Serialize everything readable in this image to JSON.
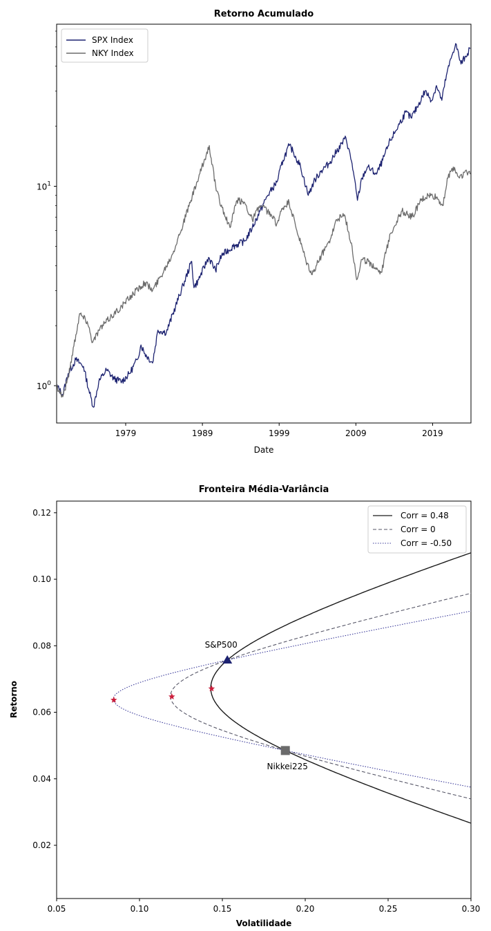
{
  "chart_data": [
    {
      "type": "line",
      "title": "Retorno Acumulado",
      "xlabel": "Date",
      "ylabel": "",
      "yscale": "log",
      "xlim": [
        1970,
        2024
      ],
      "ylim": [
        0.65,
        65
      ],
      "xticks": [
        1979,
        1989,
        1999,
        2009,
        2019
      ],
      "xtick_labels": [
        "1979",
        "1989",
        "1999",
        "2009",
        "2019"
      ],
      "yticks": [
        {
          "value": 1,
          "base": "10",
          "exp": "0"
        },
        {
          "value": 10,
          "base": "10",
          "exp": "1"
        }
      ],
      "legend_position": "top-left",
      "series": [
        {
          "name": "SPX Index",
          "color": "#1c2270",
          "points": [
            [
              1970.0,
              1.0
            ],
            [
              1970.8,
              0.9
            ],
            [
              1971.5,
              1.15
            ],
            [
              1972.5,
              1.35
            ],
            [
              1973.5,
              1.25
            ],
            [
              1974.2,
              0.95
            ],
            [
              1974.8,
              0.78
            ],
            [
              1975.5,
              1.05
            ],
            [
              1976.5,
              1.2
            ],
            [
              1977.5,
              1.08
            ],
            [
              1978.5,
              1.05
            ],
            [
              1979.5,
              1.15
            ],
            [
              1980.5,
              1.35
            ],
            [
              1981.0,
              1.6
            ],
            [
              1981.5,
              1.45
            ],
            [
              1982.5,
              1.3
            ],
            [
              1983.2,
              1.9
            ],
            [
              1984.3,
              1.85
            ],
            [
              1985.5,
              2.5
            ],
            [
              1986.5,
              3.2
            ],
            [
              1987.6,
              4.2
            ],
            [
              1987.9,
              3.1
            ],
            [
              1988.5,
              3.4
            ],
            [
              1989.8,
              4.4
            ],
            [
              1990.7,
              3.8
            ],
            [
              1991.5,
              4.5
            ],
            [
              1993.0,
              5.0
            ],
            [
              1994.5,
              5.3
            ],
            [
              1995.5,
              6.2
            ],
            [
              1996.5,
              7.5
            ],
            [
              1997.5,
              9.0
            ],
            [
              1998.7,
              10.5
            ],
            [
              1999.5,
              13.5
            ],
            [
              2000.3,
              16.0
            ],
            [
              2000.8,
              15.0
            ],
            [
              2001.8,
              12.5
            ],
            [
              2002.5,
              10.0
            ],
            [
              2002.8,
              9.0
            ],
            [
              2003.5,
              10.5
            ],
            [
              2004.5,
              12.0
            ],
            [
              2005.5,
              13.0
            ],
            [
              2006.5,
              15.0
            ],
            [
              2007.7,
              17.5
            ],
            [
              2008.5,
              13.0
            ],
            [
              2009.2,
              8.5
            ],
            [
              2009.8,
              11.0
            ],
            [
              2010.5,
              12.5
            ],
            [
              2011.7,
              11.5
            ],
            [
              2012.5,
              13.5
            ],
            [
              2013.5,
              17.0
            ],
            [
              2014.5,
              20.0
            ],
            [
              2015.5,
              23.5
            ],
            [
              2016.2,
              22.0
            ],
            [
              2017.0,
              25.0
            ],
            [
              2018.0,
              30.0
            ],
            [
              2018.9,
              27.0
            ],
            [
              2019.5,
              32.0
            ],
            [
              2020.2,
              27.0
            ],
            [
              2020.8,
              36.0
            ],
            [
              2021.5,
              45.0
            ],
            [
              2022.0,
              52.0
            ],
            [
              2022.7,
              41.0
            ],
            [
              2023.3,
              45.0
            ],
            [
              2023.9,
              49.0
            ]
          ]
        },
        {
          "name": "NKY Index",
          "color": "#6b6b6b",
          "points": [
            [
              1970.0,
              1.0
            ],
            [
              1970.8,
              0.88
            ],
            [
              1971.5,
              1.1
            ],
            [
              1972.5,
              1.8
            ],
            [
              1973.0,
              2.3
            ],
            [
              1974.0,
              2.1
            ],
            [
              1974.7,
              1.65
            ],
            [
              1975.5,
              1.9
            ],
            [
              1977.0,
              2.2
            ],
            [
              1978.5,
              2.5
            ],
            [
              1980.0,
              2.9
            ],
            [
              1981.5,
              3.3
            ],
            [
              1982.5,
              3.0
            ],
            [
              1983.5,
              3.5
            ],
            [
              1985.0,
              4.5
            ],
            [
              1986.5,
              6.5
            ],
            [
              1987.5,
              8.5
            ],
            [
              1988.5,
              11.0
            ],
            [
              1989.9,
              16.0
            ],
            [
              1990.8,
              9.5
            ],
            [
              1992.0,
              7.0
            ],
            [
              1992.6,
              6.2
            ],
            [
              1993.5,
              8.5
            ],
            [
              1994.5,
              8.3
            ],
            [
              1995.5,
              6.8
            ],
            [
              1996.5,
              8.0
            ],
            [
              1997.5,
              7.5
            ],
            [
              1998.7,
              6.5
            ],
            [
              1999.5,
              7.8
            ],
            [
              2000.3,
              8.3
            ],
            [
              2001.3,
              6.0
            ],
            [
              2002.5,
              4.2
            ],
            [
              2003.3,
              3.6
            ],
            [
              2004.5,
              4.5
            ],
            [
              2005.5,
              5.3
            ],
            [
              2006.5,
              6.8
            ],
            [
              2007.5,
              7.2
            ],
            [
              2008.5,
              5.0
            ],
            [
              2009.1,
              3.4
            ],
            [
              2009.8,
              4.3
            ],
            [
              2011.0,
              4.1
            ],
            [
              2012.3,
              3.7
            ],
            [
              2013.5,
              5.8
            ],
            [
              2015.0,
              7.5
            ],
            [
              2016.3,
              7.0
            ],
            [
              2017.5,
              8.5
            ],
            [
              2018.5,
              9.0
            ],
            [
              2019.5,
              8.8
            ],
            [
              2020.3,
              8.0
            ],
            [
              2021.0,
              11.0
            ],
            [
              2021.7,
              12.5
            ],
            [
              2022.5,
              11.0
            ],
            [
              2023.2,
              11.8
            ],
            [
              2023.9,
              11.5
            ]
          ]
        }
      ]
    },
    {
      "type": "line",
      "title": "Fronteira Média-Variância",
      "xlabel": "Volatilidade",
      "ylabel": "Retorno",
      "xlim": [
        0.05,
        0.3
      ],
      "ylim": [
        0.004,
        0.1235
      ],
      "xticks": [
        0.05,
        0.1,
        0.15,
        0.2,
        0.25,
        0.3
      ],
      "xtick_labels": [
        "0.05",
        "0.10",
        "0.15",
        "0.20",
        "0.25",
        "0.30"
      ],
      "yticks": [
        0.02,
        0.04,
        0.06,
        0.08,
        0.1,
        0.12
      ],
      "ytick_labels": [
        "0.02",
        "0.04",
        "0.06",
        "0.08",
        "0.10",
        "0.12"
      ],
      "legend_position": "top-right",
      "assets": [
        {
          "name": "S&P500",
          "volatility": 0.153,
          "return": 0.0757,
          "marker": "triangle",
          "color": "#1c2270"
        },
        {
          "name": "Nikkei225",
          "volatility": 0.188,
          "return": 0.0485,
          "marker": "square",
          "color": "#6b6b6b"
        }
      ],
      "series": [
        {
          "name": "Corr = 0.48",
          "correlation": 0.48,
          "style": "solid",
          "color": "#1a1a1a",
          "min_variance": {
            "volatility": 0.1435,
            "return": 0.0671
          }
        },
        {
          "name": "Corr = 0",
          "correlation": 0,
          "style": "dashed",
          "color": "#555566",
          "min_variance": {
            "volatility": 0.1195,
            "return": 0.0647
          }
        },
        {
          "name": "Corr = -0.50",
          "correlation": -0.5,
          "style": "dotted",
          "color": "#3a3a9a",
          "min_variance": {
            "volatility": 0.0845,
            "return": 0.0637
          }
        }
      ],
      "min_variance_marker": {
        "shape": "star",
        "color": "#cc1f3c"
      }
    }
  ]
}
